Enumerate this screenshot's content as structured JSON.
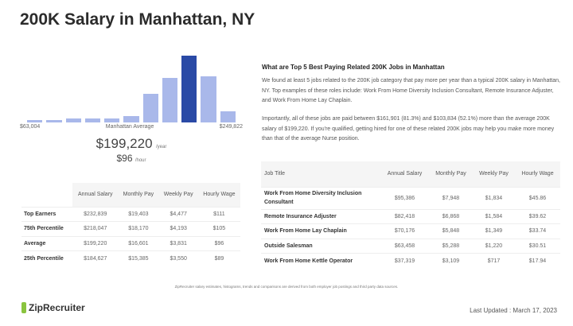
{
  "title": "200K Salary in Manhattan, NY",
  "histogram": {
    "relative_heights": [
      4,
      3,
      6,
      6,
      6,
      10,
      43,
      67,
      100,
      69,
      17
    ],
    "highlight_index": 8,
    "min_label": "$63,004",
    "mid_label": "Manhattan Average",
    "max_label": "$249,822",
    "colors": {
      "bar": "#a9b8ea",
      "highlight": "#2a4aa6"
    }
  },
  "average": {
    "annual": "$199,220",
    "annual_unit": "/year",
    "hourly": "$96",
    "hourly_unit": "/hour"
  },
  "percentiles": {
    "headers": [
      "",
      "Annual Salary",
      "Monthly Pay",
      "Weekly Pay",
      "Hourly Wage"
    ],
    "rows": [
      [
        "Top Earners",
        "$232,839",
        "$19,403",
        "$4,477",
        "$111"
      ],
      [
        "75th Percentile",
        "$218,047",
        "$18,170",
        "$4,193",
        "$105"
      ],
      [
        "Average",
        "$199,220",
        "$16,601",
        "$3,831",
        "$96"
      ],
      [
        "25th Percentile",
        "$184,627",
        "$15,385",
        "$3,550",
        "$89"
      ]
    ]
  },
  "related": {
    "heading": "What are Top 5 Best Paying Related 200K Jobs in Manhattan",
    "p1": "We found at least 5 jobs related to the 200K job category that pay more per year than a typical 200K salary in Manhattan, NY. Top examples of these roles include: Work From Home Diversity Inclusion Consultant, Remote Insurance Adjuster, and Work From Home Lay Chaplain.",
    "p2": "Importantly, all of these jobs are paid between $161,901 (81.3%) and $103,834 (52.1%) more than the average 200K salary of $199,220. If you're qualified, getting hired for one of these related 200K jobs may help you make more money than that of the average Nurse position.",
    "headers": [
      "Job Title",
      "Annual Salary",
      "Monthly Pay",
      "Weekly Pay",
      "Hourly Wage"
    ],
    "rows": [
      [
        "Work From Home Diversity Inclusion Consultant",
        "$95,386",
        "$7,948",
        "$1,834",
        "$45.86"
      ],
      [
        "Remote Insurance Adjuster",
        "$82,418",
        "$6,868",
        "$1,584",
        "$39.62"
      ],
      [
        "Work From Home Lay Chaplain",
        "$70,176",
        "$5,848",
        "$1,349",
        "$33.74"
      ],
      [
        "Outside Salesman",
        "$63,458",
        "$5,288",
        "$1,220",
        "$30.51"
      ],
      [
        "Work From Home Kettle Operator",
        "$37,319",
        "$3,109",
        "$717",
        "$17.94"
      ]
    ]
  },
  "footer": {
    "note": "ZipRecruiter salary estimates, histograms, trends and comparisons are derived from both employer job postings and third party data sources.",
    "logo": "ZipRecruiter",
    "updated": "Last Updated : March 17, 2023"
  }
}
